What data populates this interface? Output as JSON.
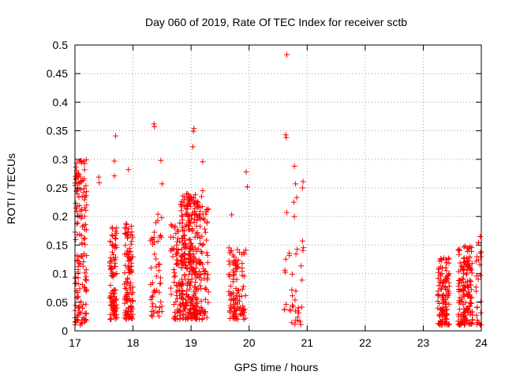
{
  "chart_data": {
    "type": "scatter",
    "title": "Day 060 of 2019, Rate Of TEC Index for receiver sctb",
    "xlabel": "GPS time / hours",
    "ylabel": "ROTI / TECUs",
    "xlim": [
      17,
      24
    ],
    "ylim": [
      0,
      0.5
    ],
    "x_ticks": [
      "17",
      "18",
      "19",
      "20",
      "21",
      "22",
      "23",
      "24"
    ],
    "y_ticks": [
      "0",
      "0.05",
      "0.1",
      "0.15",
      "0.2",
      "0.25",
      "0.3",
      "0.35",
      "0.4",
      "0.45",
      "0.5"
    ],
    "grid": true,
    "marker": "plus",
    "series_color": "#ff0000",
    "series": [
      {
        "name": "ROTI",
        "clusters": [
          {
            "x_range": [
              17.0,
              17.2
            ],
            "count": 150,
            "y_min": 0.01,
            "y_max": 0.3
          },
          {
            "x_range": [
              17.6,
              17.72
            ],
            "count": 100,
            "y_min": 0.02,
            "y_max": 0.19
          },
          {
            "x_range": [
              17.85,
              18.0
            ],
            "count": 110,
            "y_min": 0.02,
            "y_max": 0.19
          },
          {
            "x_range": [
              18.3,
              18.5
            ],
            "count": 50,
            "y_min": 0.02,
            "y_max": 0.2
          },
          {
            "x_range": [
              18.65,
              18.82
            ],
            "count": 70,
            "y_min": 0.02,
            "y_max": 0.19
          },
          {
            "x_range": [
              18.82,
              19.12
            ],
            "count": 300,
            "y_min": 0.02,
            "y_max": 0.24
          },
          {
            "x_range": [
              19.12,
              19.3
            ],
            "count": 80,
            "y_min": 0.02,
            "y_max": 0.22
          },
          {
            "x_range": [
              19.65,
              19.8
            ],
            "count": 70,
            "y_min": 0.02,
            "y_max": 0.15
          },
          {
            "x_range": [
              19.8,
              19.95
            ],
            "count": 40,
            "y_min": 0.02,
            "y_max": 0.15
          },
          {
            "x_range": [
              20.6,
              20.72
            ],
            "count": 10,
            "y_min": 0.02,
            "y_max": 0.15
          },
          {
            "x_range": [
              20.72,
              20.98
            ],
            "count": 25,
            "y_min": 0.01,
            "y_max": 0.16
          },
          {
            "x_range": [
              23.25,
              23.45
            ],
            "count": 120,
            "y_min": 0.01,
            "y_max": 0.13
          },
          {
            "x_range": [
              23.6,
              23.85
            ],
            "count": 160,
            "y_min": 0.01,
            "y_max": 0.15
          },
          {
            "x_range": [
              23.9,
              24.0
            ],
            "count": 25,
            "y_min": 0.01,
            "y_max": 0.16
          }
        ],
        "outliers": [
          [
            20.65,
            0.483
          ],
          [
            18.36,
            0.362
          ],
          [
            18.37,
            0.357
          ],
          [
            19.05,
            0.354
          ],
          [
            19.04,
            0.349
          ],
          [
            20.63,
            0.343
          ],
          [
            20.64,
            0.338
          ],
          [
            17.7,
            0.341
          ],
          [
            19.03,
            0.322
          ],
          [
            18.48,
            0.298
          ],
          [
            17.68,
            0.297
          ],
          [
            19.2,
            0.296
          ],
          [
            17.08,
            0.297
          ],
          [
            17.15,
            0.297
          ],
          [
            20.78,
            0.288
          ],
          [
            17.92,
            0.282
          ],
          [
            19.95,
            0.278
          ],
          [
            17.68,
            0.271
          ],
          [
            17.41,
            0.269
          ],
          [
            17.06,
            0.275
          ],
          [
            17.03,
            0.28
          ],
          [
            20.93,
            0.261
          ],
          [
            17.42,
            0.259
          ],
          [
            18.5,
            0.257
          ],
          [
            20.8,
            0.257
          ],
          [
            19.97,
            0.252
          ],
          [
            20.92,
            0.25
          ],
          [
            17.1,
            0.247
          ],
          [
            19.2,
            0.245
          ],
          [
            20.82,
            0.233
          ],
          [
            19.18,
            0.235
          ],
          [
            19.0,
            0.23
          ],
          [
            18.96,
            0.228
          ],
          [
            20.77,
            0.225
          ],
          [
            17.2,
            0.22
          ],
          [
            20.65,
            0.207
          ],
          [
            19.7,
            0.203
          ],
          [
            20.78,
            0.2
          ],
          [
            18.43,
            0.204
          ],
          [
            23.98,
            0.165
          ],
          [
            20.92,
            0.157
          ]
        ]
      }
    ]
  }
}
